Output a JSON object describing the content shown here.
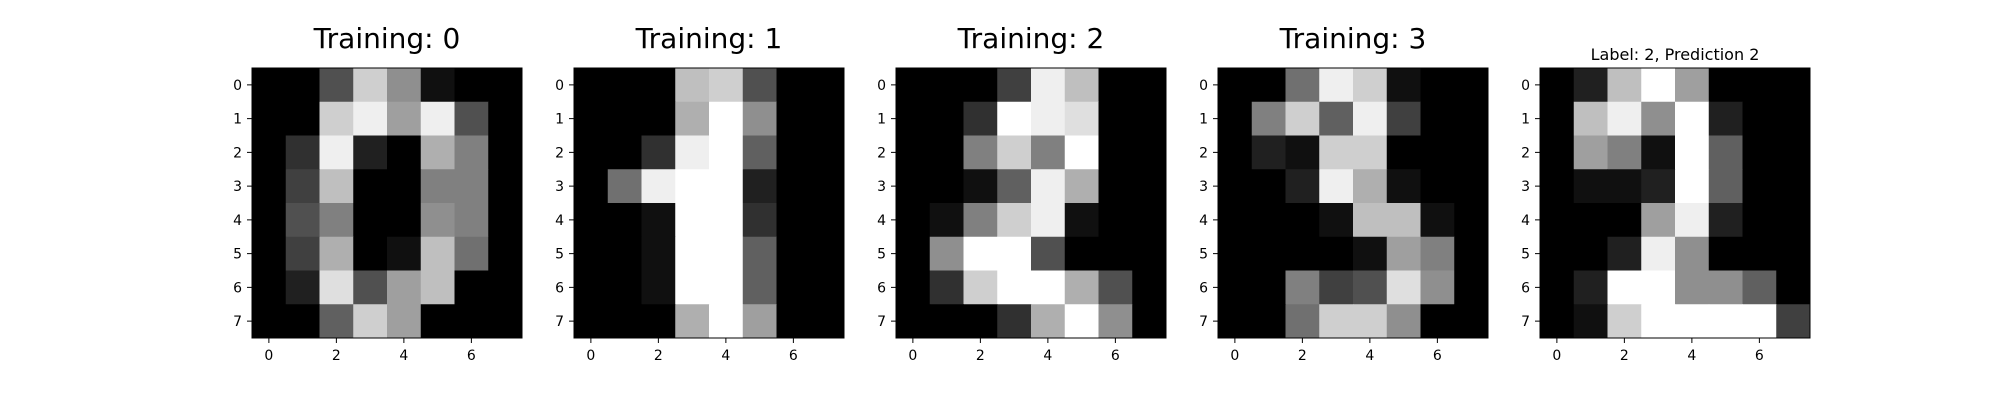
{
  "chart_data": [
    {
      "type": "heatmap",
      "title": "Training: 0",
      "colormap": "grayscale",
      "vmin": 0,
      "vmax": 16,
      "x_ticks": [
        0,
        2,
        4,
        6
      ],
      "y_ticks": [
        0,
        1,
        2,
        3,
        4,
        5,
        6,
        7
      ],
      "values": [
        [
          0,
          0,
          5,
          13,
          9,
          1,
          0,
          0
        ],
        [
          0,
          0,
          13,
          15,
          10,
          15,
          5,
          0
        ],
        [
          0,
          3,
          15,
          2,
          0,
          11,
          8,
          0
        ],
        [
          0,
          4,
          12,
          0,
          0,
          8,
          8,
          0
        ],
        [
          0,
          5,
          8,
          0,
          0,
          9,
          8,
          0
        ],
        [
          0,
          4,
          11,
          0,
          1,
          12,
          7,
          0
        ],
        [
          0,
          2,
          14,
          5,
          10,
          12,
          0,
          0
        ],
        [
          0,
          0,
          6,
          13,
          10,
          0,
          0,
          0
        ]
      ]
    },
    {
      "type": "heatmap",
      "title": "Training: 1",
      "colormap": "grayscale",
      "vmin": 0,
      "vmax": 16,
      "x_ticks": [
        0,
        2,
        4,
        6
      ],
      "y_ticks": [
        0,
        1,
        2,
        3,
        4,
        5,
        6,
        7
      ],
      "values": [
        [
          0,
          0,
          0,
          12,
          13,
          5,
          0,
          0
        ],
        [
          0,
          0,
          0,
          11,
          16,
          9,
          0,
          0
        ],
        [
          0,
          0,
          3,
          15,
          16,
          6,
          0,
          0
        ],
        [
          0,
          7,
          15,
          16,
          16,
          2,
          0,
          0
        ],
        [
          0,
          0,
          1,
          16,
          16,
          3,
          0,
          0
        ],
        [
          0,
          0,
          1,
          16,
          16,
          6,
          0,
          0
        ],
        [
          0,
          0,
          1,
          16,
          16,
          6,
          0,
          0
        ],
        [
          0,
          0,
          0,
          11,
          16,
          10,
          0,
          0
        ]
      ]
    },
    {
      "type": "heatmap",
      "title": "Training: 2",
      "colormap": "grayscale",
      "vmin": 0,
      "vmax": 16,
      "x_ticks": [
        0,
        2,
        4,
        6
      ],
      "y_ticks": [
        0,
        1,
        2,
        3,
        4,
        5,
        6,
        7
      ],
      "values": [
        [
          0,
          0,
          0,
          4,
          15,
          12,
          0,
          0
        ],
        [
          0,
          0,
          3,
          16,
          15,
          14,
          0,
          0
        ],
        [
          0,
          0,
          8,
          13,
          8,
          16,
          0,
          0
        ],
        [
          0,
          0,
          1,
          6,
          15,
          11,
          0,
          0
        ],
        [
          0,
          1,
          8,
          13,
          15,
          1,
          0,
          0
        ],
        [
          0,
          9,
          16,
          16,
          5,
          0,
          0,
          0
        ],
        [
          0,
          3,
          13,
          16,
          16,
          11,
          5,
          0
        ],
        [
          0,
          0,
          0,
          3,
          11,
          16,
          9,
          0
        ]
      ]
    },
    {
      "type": "heatmap",
      "title": "Training: 3",
      "colormap": "grayscale",
      "vmin": 0,
      "vmax": 16,
      "x_ticks": [
        0,
        2,
        4,
        6
      ],
      "y_ticks": [
        0,
        1,
        2,
        3,
        4,
        5,
        6,
        7
      ],
      "values": [
        [
          0,
          0,
          7,
          15,
          13,
          1,
          0,
          0
        ],
        [
          0,
          8,
          13,
          6,
          15,
          4,
          0,
          0
        ],
        [
          0,
          2,
          1,
          13,
          13,
          0,
          0,
          0
        ],
        [
          0,
          0,
          2,
          15,
          11,
          1,
          0,
          0
        ],
        [
          0,
          0,
          0,
          1,
          12,
          12,
          1,
          0
        ],
        [
          0,
          0,
          0,
          0,
          1,
          10,
          8,
          0
        ],
        [
          0,
          0,
          8,
          4,
          5,
          14,
          9,
          0
        ],
        [
          0,
          0,
          7,
          13,
          13,
          9,
          0,
          0
        ]
      ]
    },
    {
      "type": "heatmap",
      "title": "Label: 2, Prediction 2",
      "colormap": "grayscale",
      "vmin": 0,
      "vmax": 16,
      "x_ticks": [
        0,
        2,
        4,
        6
      ],
      "y_ticks": [
        0,
        1,
        2,
        3,
        4,
        5,
        6,
        7
      ],
      "values": [
        [
          0,
          2,
          12,
          16,
          10,
          0,
          0,
          0
        ],
        [
          0,
          12,
          15,
          9,
          16,
          2,
          0,
          0
        ],
        [
          0,
          10,
          8,
          1,
          16,
          6,
          0,
          0
        ],
        [
          0,
          1,
          1,
          2,
          16,
          6,
          0,
          0
        ],
        [
          0,
          0,
          0,
          10,
          15,
          2,
          0,
          0
        ],
        [
          0,
          0,
          2,
          15,
          9,
          0,
          0,
          0
        ],
        [
          0,
          2,
          16,
          16,
          9,
          9,
          6,
          0
        ],
        [
          0,
          1,
          13,
          16,
          16,
          16,
          16,
          4
        ]
      ]
    }
  ]
}
